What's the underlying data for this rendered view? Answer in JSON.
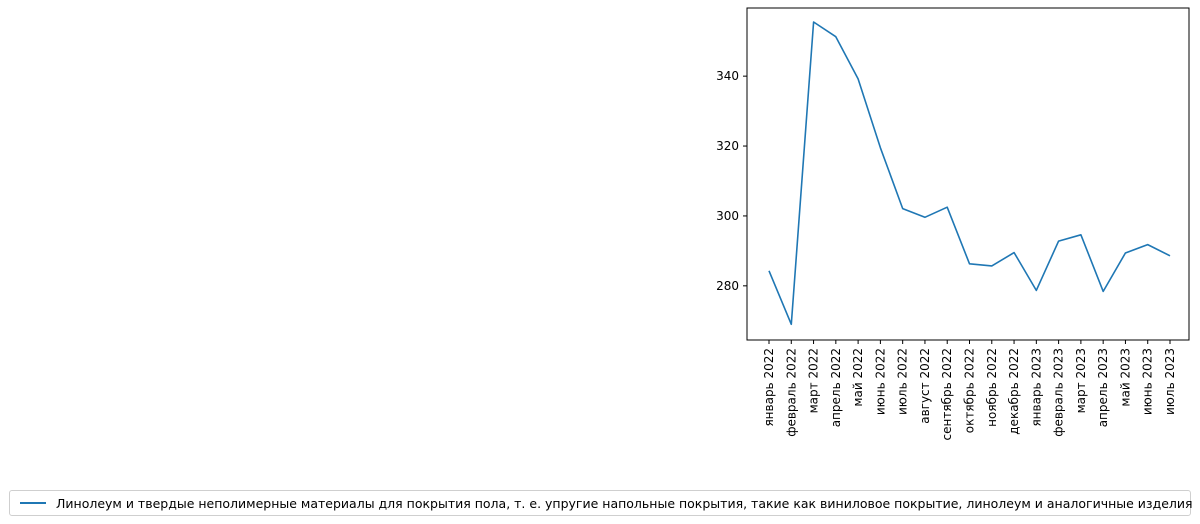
{
  "chart_data": {
    "type": "line",
    "title": "",
    "xlabel": "",
    "ylabel": "",
    "categories": [
      "январь 2022",
      "февраль 2022",
      "март 2022",
      "апрель 2022",
      "май 2022",
      "июнь 2022",
      "июль 2022",
      "август 2022",
      "сентябрь 2022",
      "октябрь 2022",
      "ноябрь 2022",
      "декабрь 2022",
      "январь 2023",
      "февраль 2023",
      "март 2023",
      "апрель 2023",
      "май 2023",
      "июнь 2023",
      "июль 2023"
    ],
    "series": [
      {
        "name": "Линолеум и твердые неполимерные материалы для покрытия пола, т. е. упругие напольные покрытия, такие как виниловое покрытие, линолеум и аналогичные изделия",
        "color": "#1f77b4",
        "values": [
          284.3,
          269.0,
          355.5,
          351.3,
          339.2,
          319.5,
          302.1,
          299.6,
          302.5,
          286.3,
          285.7,
          289.5,
          278.7,
          292.8,
          294.6,
          278.4,
          289.4,
          291.8,
          288.6
        ]
      }
    ],
    "ylim": [
      264.5,
      359.5
    ],
    "yticks": [
      280,
      300,
      320,
      340
    ],
    "legend_position": "bottom",
    "grid": false
  }
}
